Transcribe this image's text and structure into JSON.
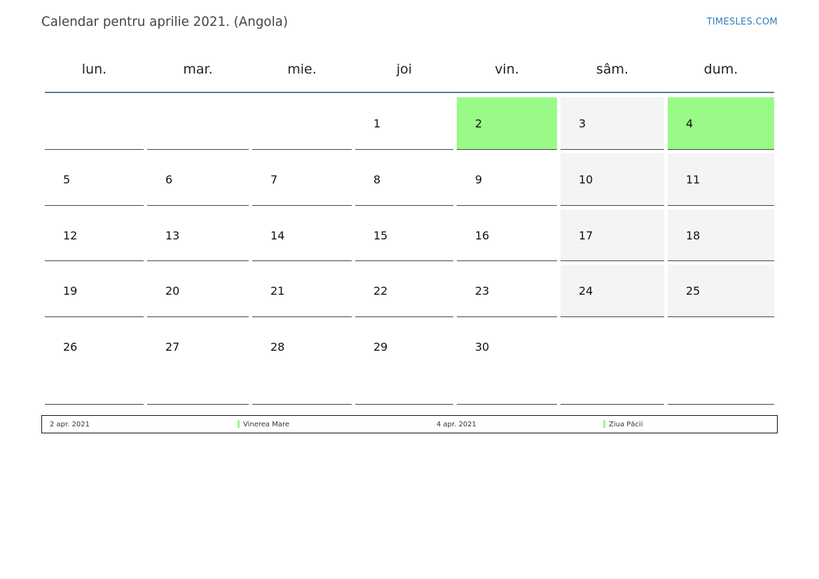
{
  "title": "Calendar pentru aprilie 2021. (Angola)",
  "brand": "TIMESLES.COM",
  "weekdays": [
    "lun.",
    "mar.",
    "mie.",
    "joi",
    "vin.",
    "sâm.",
    "dum."
  ],
  "colors": {
    "holiday": "#99fa87",
    "weekend": "#f4f4f4",
    "header_rule": "#5a7aa6",
    "brand": "#2f7fbf"
  },
  "weeks": [
    [
      null,
      null,
      null,
      1,
      2,
      3,
      4
    ],
    [
      5,
      6,
      7,
      8,
      9,
      10,
      11
    ],
    [
      12,
      13,
      14,
      15,
      16,
      17,
      18
    ],
    [
      19,
      20,
      21,
      22,
      23,
      24,
      25
    ],
    [
      26,
      27,
      28,
      29,
      30,
      null,
      null
    ]
  ],
  "holidays": [
    2,
    4
  ],
  "legend": [
    {
      "date": "2 apr. 2021",
      "name": "Vinerea Mare"
    },
    {
      "date": "4 apr. 2021",
      "name": "Ziua Păcii"
    }
  ]
}
